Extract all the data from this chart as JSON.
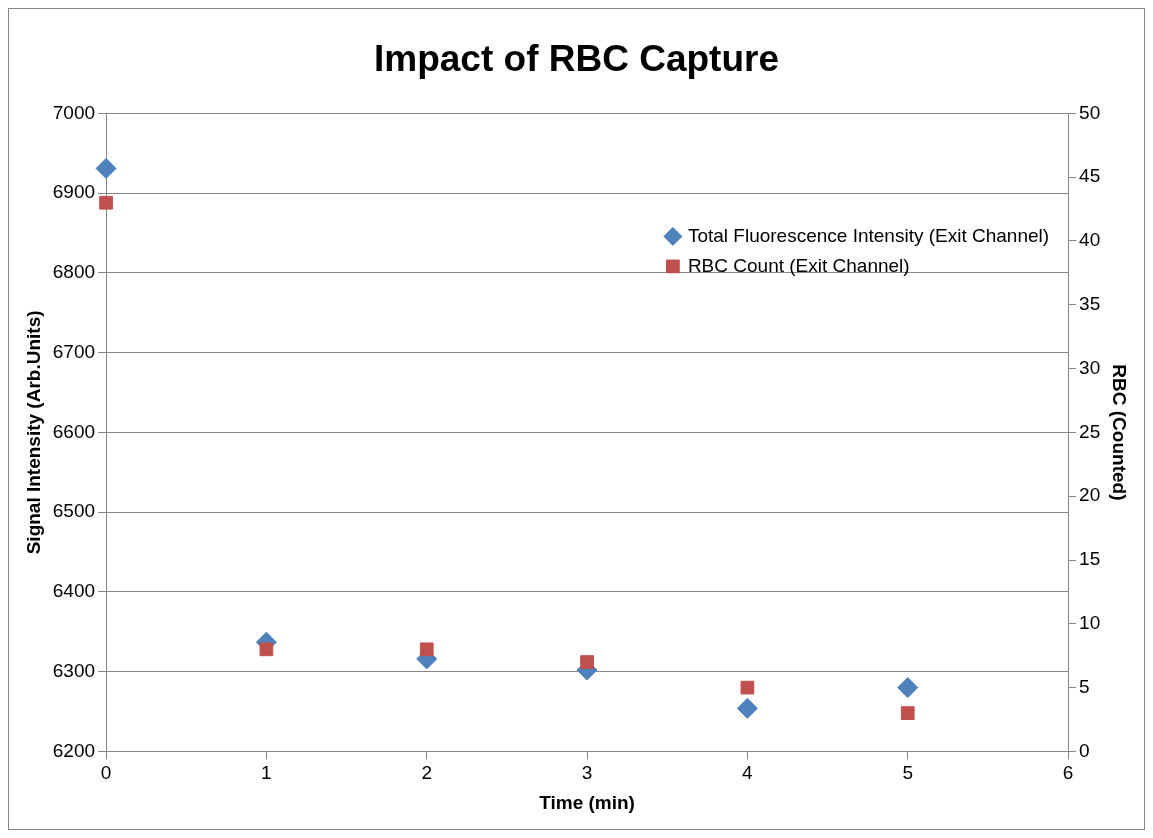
{
  "chart_data": {
    "type": "scatter",
    "title": "Impact of RBC Capture",
    "xlabel": "Time (min)",
    "ylabel": "Signal Intensity (Arb.Units)",
    "y2label": "RBC (Counted)",
    "x": [
      0,
      1,
      2,
      3,
      4,
      5
    ],
    "series": [
      {
        "name": "Total Fluorescence Intensity (Exit Channel)",
        "color": "#4f81bd",
        "marker": "diamond",
        "values": [
          6931,
          6337,
          6316,
          6302,
          6254,
          6280
        ]
      },
      {
        "name": "RBC Count (Exit Channel)",
        "color": "#c0504d",
        "marker": "square",
        "axis": "y2",
        "values": [
          43,
          8,
          8,
          7,
          5,
          3
        ]
      }
    ],
    "xlim": [
      0,
      6
    ],
    "xticks": [
      0,
      1,
      2,
      3,
      4,
      5,
      6
    ],
    "ylim": [
      6200,
      7000
    ],
    "yticks": [
      6200,
      6300,
      6400,
      6500,
      6600,
      6700,
      6800,
      6900,
      7000
    ],
    "y2lim": [
      0,
      50
    ],
    "y2ticks": [
      0,
      5,
      10,
      15,
      20,
      25,
      30,
      35,
      40,
      45,
      50
    ],
    "grid": "y",
    "legend": "top right"
  }
}
